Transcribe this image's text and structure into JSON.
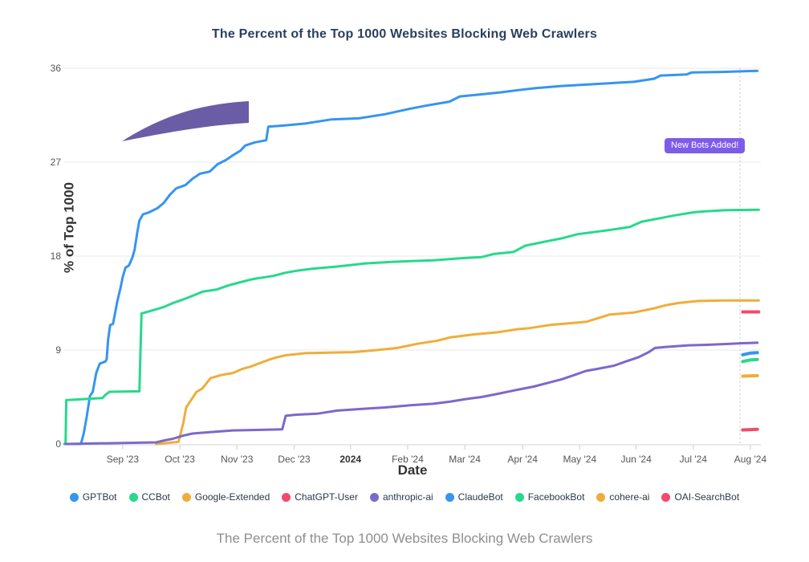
{
  "title": "The Percent of the Top 1000 Websites Blocking Web Crawlers",
  "caption": "The Percent of the Top 1000 Websites Blocking Web Crawlers",
  "chart_data": {
    "type": "line",
    "title": "The Percent of the Top 1000 Websites Blocking Web Crawlers",
    "xlabel": "Date",
    "ylabel": "% of Top 1000",
    "ylim": [
      0,
      36
    ],
    "grid": true,
    "legend_position": "bottom",
    "y_ticks": [
      0,
      9,
      18,
      27,
      36
    ],
    "x_ticks": [
      {
        "label": "Sep '23",
        "t": 0.084,
        "bold": false
      },
      {
        "label": "Oct '23",
        "t": 0.166,
        "bold": false
      },
      {
        "label": "Nov '23",
        "t": 0.248,
        "bold": false
      },
      {
        "label": "Dec '23",
        "t": 0.33,
        "bold": false
      },
      {
        "label": "2024",
        "t": 0.411,
        "bold": true
      },
      {
        "label": "Feb '24",
        "t": 0.493,
        "bold": false
      },
      {
        "label": "Mar '24",
        "t": 0.575,
        "bold": false
      },
      {
        "label": "Apr '24",
        "t": 0.658,
        "bold": false
      },
      {
        "label": "May '24",
        "t": 0.74,
        "bold": false
      },
      {
        "label": "Jun '24",
        "t": 0.821,
        "bold": false
      },
      {
        "label": "Jul '24",
        "t": 0.903,
        "bold": false
      },
      {
        "label": "Aug '24",
        "t": 0.985,
        "bold": false
      }
    ],
    "annotations": {
      "badge": {
        "text": "New Bots Added!",
        "bg": "#7d5ce8",
        "color": "#ffffff"
      },
      "vline": {
        "t": 0.97,
        "style": "dotted",
        "color": "#c4c4c4"
      },
      "swoosh": {
        "color": "#6b5ca6"
      }
    },
    "series": [
      {
        "name": "GPTBot",
        "color": "#3595f0",
        "width": 3,
        "points": [
          [
            0.002,
            0
          ],
          [
            0.024,
            0
          ],
          [
            0.028,
            1
          ],
          [
            0.032,
            2.5
          ],
          [
            0.037,
            4.6
          ],
          [
            0.041,
            5.0
          ],
          [
            0.046,
            6.8
          ],
          [
            0.051,
            7.7
          ],
          [
            0.059,
            7.9
          ],
          [
            0.061,
            8.1
          ],
          [
            0.063,
            10.0
          ],
          [
            0.066,
            11.4
          ],
          [
            0.07,
            11.5
          ],
          [
            0.076,
            13.6
          ],
          [
            0.081,
            15.0
          ],
          [
            0.084,
            16.0
          ],
          [
            0.088,
            16.9
          ],
          [
            0.093,
            17.1
          ],
          [
            0.098,
            17.9
          ],
          [
            0.101,
            18.6
          ],
          [
            0.105,
            20.3
          ],
          [
            0.108,
            21.4
          ],
          [
            0.113,
            22.0
          ],
          [
            0.122,
            22.2
          ],
          [
            0.134,
            22.6
          ],
          [
            0.143,
            23.1
          ],
          [
            0.152,
            23.9
          ],
          [
            0.161,
            24.5
          ],
          [
            0.174,
            24.8
          ],
          [
            0.184,
            25.4
          ],
          [
            0.195,
            25.9
          ],
          [
            0.209,
            26.1
          ],
          [
            0.22,
            26.8
          ],
          [
            0.232,
            27.2
          ],
          [
            0.243,
            27.7
          ],
          [
            0.253,
            28.1
          ],
          [
            0.26,
            28.6
          ],
          [
            0.274,
            28.9
          ],
          [
            0.29,
            29.1
          ],
          [
            0.293,
            30.4
          ],
          [
            0.313,
            30.5
          ],
          [
            0.346,
            30.7
          ],
          [
            0.384,
            31.1
          ],
          [
            0.423,
            31.2
          ],
          [
            0.461,
            31.6
          ],
          [
            0.495,
            32.1
          ],
          [
            0.518,
            32.4
          ],
          [
            0.553,
            32.8
          ],
          [
            0.568,
            33.3
          ],
          [
            0.599,
            33.5
          ],
          [
            0.628,
            33.7
          ],
          [
            0.651,
            33.9
          ],
          [
            0.677,
            34.1
          ],
          [
            0.714,
            34.3
          ],
          [
            0.766,
            34.5
          ],
          [
            0.818,
            34.7
          ],
          [
            0.847,
            35.0
          ],
          [
            0.856,
            35.3
          ],
          [
            0.893,
            35.4
          ],
          [
            0.901,
            35.6
          ],
          [
            0.945,
            35.65
          ],
          [
            0.97,
            35.7
          ],
          [
            0.995,
            35.75
          ]
        ]
      },
      {
        "name": "CCBot",
        "color": "#27d98b",
        "width": 3,
        "points": [
          [
            0.0,
            0
          ],
          [
            0.002,
            0
          ],
          [
            0.003,
            4.2
          ],
          [
            0.055,
            4.4
          ],
          [
            0.059,
            4.7
          ],
          [
            0.065,
            5.0
          ],
          [
            0.108,
            5.05
          ],
          [
            0.111,
            12.5
          ],
          [
            0.127,
            12.8
          ],
          [
            0.142,
            13.1
          ],
          [
            0.156,
            13.5
          ],
          [
            0.169,
            13.8
          ],
          [
            0.188,
            14.3
          ],
          [
            0.199,
            14.6
          ],
          [
            0.219,
            14.8
          ],
          [
            0.236,
            15.2
          ],
          [
            0.253,
            15.5
          ],
          [
            0.271,
            15.8
          ],
          [
            0.28,
            15.9
          ],
          [
            0.3,
            16.1
          ],
          [
            0.317,
            16.4
          ],
          [
            0.334,
            16.6
          ],
          [
            0.357,
            16.8
          ],
          [
            0.392,
            17.0
          ],
          [
            0.432,
            17.3
          ],
          [
            0.472,
            17.45
          ],
          [
            0.53,
            17.6
          ],
          [
            0.57,
            17.8
          ],
          [
            0.599,
            17.9
          ],
          [
            0.616,
            18.2
          ],
          [
            0.645,
            18.4
          ],
          [
            0.662,
            19.0
          ],
          [
            0.691,
            19.4
          ],
          [
            0.714,
            19.7
          ],
          [
            0.737,
            20.1
          ],
          [
            0.783,
            20.5
          ],
          [
            0.812,
            20.8
          ],
          [
            0.829,
            21.3
          ],
          [
            0.853,
            21.6
          ],
          [
            0.876,
            21.9
          ],
          [
            0.904,
            22.2
          ],
          [
            0.922,
            22.3
          ],
          [
            0.95,
            22.4
          ],
          [
            0.997,
            22.45
          ]
        ]
      },
      {
        "name": "Google-Extended",
        "color": "#f0ad3a",
        "width": 3,
        "points": [
          [
            0.132,
            0
          ],
          [
            0.164,
            0.2
          ],
          [
            0.171,
            2.0
          ],
          [
            0.175,
            3.5
          ],
          [
            0.182,
            4.2
          ],
          [
            0.19,
            5.0
          ],
          [
            0.198,
            5.3
          ],
          [
            0.21,
            6.3
          ],
          [
            0.225,
            6.6
          ],
          [
            0.242,
            6.8
          ],
          [
            0.256,
            7.2
          ],
          [
            0.267,
            7.4
          ],
          [
            0.279,
            7.7
          ],
          [
            0.295,
            8.1
          ],
          [
            0.305,
            8.3
          ],
          [
            0.318,
            8.5
          ],
          [
            0.332,
            8.6
          ],
          [
            0.346,
            8.7
          ],
          [
            0.38,
            8.75
          ],
          [
            0.415,
            8.8
          ],
          [
            0.449,
            9.0
          ],
          [
            0.478,
            9.2
          ],
          [
            0.507,
            9.6
          ],
          [
            0.536,
            9.9
          ],
          [
            0.553,
            10.2
          ],
          [
            0.588,
            10.5
          ],
          [
            0.622,
            10.7
          ],
          [
            0.651,
            11.0
          ],
          [
            0.668,
            11.1
          ],
          [
            0.697,
            11.4
          ],
          [
            0.714,
            11.5
          ],
          [
            0.749,
            11.7
          ],
          [
            0.783,
            12.4
          ],
          [
            0.818,
            12.6
          ],
          [
            0.847,
            13.0
          ],
          [
            0.864,
            13.3
          ],
          [
            0.881,
            13.5
          ],
          [
            0.91,
            13.7
          ],
          [
            0.945,
            13.75
          ],
          [
            0.997,
            13.75
          ]
        ]
      },
      {
        "name": "ChatGPT-User",
        "color": "#f24a6b",
        "width": 4,
        "points": [
          [
            0.974,
            12.65
          ],
          [
            0.997,
            12.65
          ]
        ]
      },
      {
        "name": "anthropic-ai",
        "color": "#7d68cb",
        "width": 3,
        "points": [
          [
            0.002,
            0
          ],
          [
            0.132,
            0.15
          ],
          [
            0.144,
            0.35
          ],
          [
            0.156,
            0.5
          ],
          [
            0.171,
            0.8
          ],
          [
            0.184,
            1.0
          ],
          [
            0.213,
            1.15
          ],
          [
            0.242,
            1.3
          ],
          [
            0.277,
            1.35
          ],
          [
            0.313,
            1.4
          ],
          [
            0.318,
            2.7
          ],
          [
            0.332,
            2.8
          ],
          [
            0.363,
            2.9
          ],
          [
            0.392,
            3.2
          ],
          [
            0.426,
            3.35
          ],
          [
            0.461,
            3.5
          ],
          [
            0.495,
            3.7
          ],
          [
            0.53,
            3.85
          ],
          [
            0.553,
            4.05
          ],
          [
            0.576,
            4.3
          ],
          [
            0.599,
            4.5
          ],
          [
            0.622,
            4.8
          ],
          [
            0.651,
            5.2
          ],
          [
            0.674,
            5.5
          ],
          [
            0.697,
            5.9
          ],
          [
            0.714,
            6.2
          ],
          [
            0.732,
            6.6
          ],
          [
            0.749,
            7.0
          ],
          [
            0.766,
            7.2
          ],
          [
            0.789,
            7.5
          ],
          [
            0.806,
            7.9
          ],
          [
            0.824,
            8.3
          ],
          [
            0.839,
            8.8
          ],
          [
            0.848,
            9.2
          ],
          [
            0.864,
            9.3
          ],
          [
            0.896,
            9.45
          ],
          [
            0.922,
            9.5
          ],
          [
            0.956,
            9.6
          ],
          [
            0.97,
            9.65
          ],
          [
            0.995,
            9.7
          ]
        ]
      },
      {
        "name": "ClaudeBot",
        "color": "#3595f0",
        "width": 4,
        "points": [
          [
            0.974,
            8.55
          ],
          [
            0.984,
            8.7
          ],
          [
            0.995,
            8.75
          ]
        ]
      },
      {
        "name": "FacebookBot",
        "color": "#27d98b",
        "width": 4,
        "points": [
          [
            0.974,
            7.9
          ],
          [
            0.984,
            8.05
          ],
          [
            0.995,
            8.1
          ]
        ]
      },
      {
        "name": "cohere-ai",
        "color": "#f0ad3a",
        "width": 4,
        "points": [
          [
            0.974,
            6.5
          ],
          [
            0.995,
            6.55
          ]
        ]
      },
      {
        "name": "OAI-SearchBot",
        "color": "#f24a6b",
        "width": 4,
        "points": [
          [
            0.974,
            1.35
          ],
          [
            0.995,
            1.4
          ]
        ]
      }
    ],
    "legend": [
      "GPTBot",
      "CCBot",
      "Google-Extended",
      "ChatGPT-User",
      "anthropic-ai",
      "ClaudeBot",
      "FacebookBot",
      "cohere-ai",
      "OAI-SearchBot"
    ]
  }
}
